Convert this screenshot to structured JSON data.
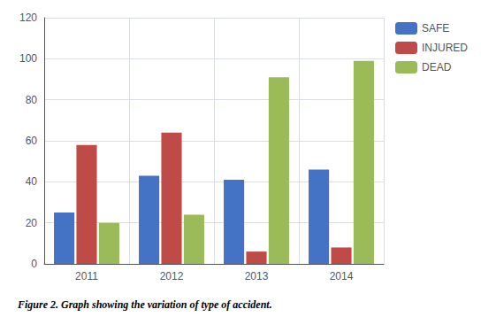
{
  "chart_data": {
    "type": "bar",
    "caption": "Figure 2. Graph showing the variation of type of accident.",
    "categories": [
      "2011",
      "2012",
      "2013",
      "2014"
    ],
    "series": [
      {
        "name": "SAFE",
        "color": "#4472C4",
        "values": [
          25,
          43,
          41,
          46
        ]
      },
      {
        "name": "INJURED",
        "color": "#BE4B48",
        "values": [
          58,
          64,
          6,
          8
        ]
      },
      {
        "name": "DEAD",
        "color": "#9BBB59",
        "values": [
          20,
          24,
          91,
          99
        ]
      }
    ],
    "ylim": [
      0,
      120
    ],
    "yticks": [
      0,
      20,
      40,
      60,
      80,
      100,
      120
    ],
    "grid": true,
    "legend": "right"
  }
}
